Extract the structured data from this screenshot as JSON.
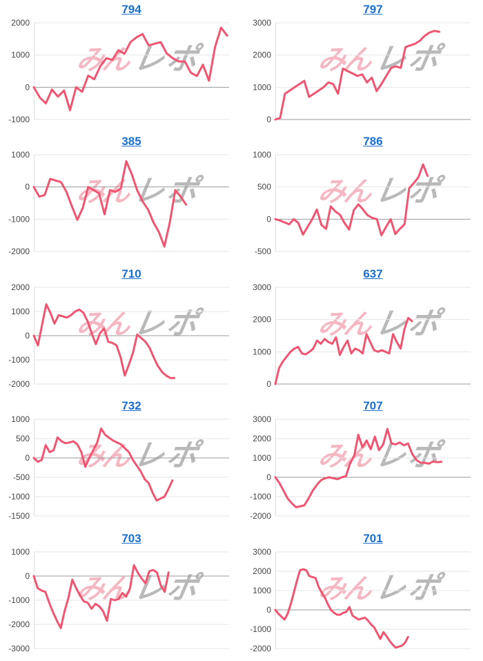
{
  "page": {
    "background": "#ffffff"
  },
  "watermark": {
    "pink_text": "みん",
    "gray_text": "レポ"
  },
  "style": {
    "line_color": "#ef5570",
    "grid_color": "#e6e6e6",
    "zero_line_color": "#999999",
    "axis_line_color": "#dddddd",
    "tick_label_color": "#444444",
    "title_link_color": "#1a6fce",
    "watermark_pink_color": "rgba(233, 98, 122, 0.45)",
    "watermark_gray_color": "rgba(128, 128, 128, 0.55)"
  },
  "chart_data": [
    {
      "type": "line",
      "title": "794",
      "ylim": [
        -1000,
        2000
      ],
      "yticks": [
        2000,
        1000,
        0,
        -1000
      ],
      "x_fraction": 0.99,
      "grid": true,
      "legend": "none",
      "values": [
        0,
        -320,
        -500,
        -70,
        -290,
        -100,
        -710,
        0,
        -140,
        360,
        250,
        650,
        900,
        850,
        1150,
        1040,
        1400,
        1550,
        1650,
        1300,
        1350,
        1400,
        1050,
        900,
        800,
        800,
        450,
        350,
        700,
        200,
        1250,
        1850,
        1600
      ]
    },
    {
      "type": "line",
      "title": "797",
      "ylim": [
        0,
        3000
      ],
      "yticks": [
        3000,
        2000,
        1000,
        0
      ],
      "x_fraction": 0.84,
      "grid": true,
      "legend": "none",
      "values": [
        0,
        50,
        800,
        900,
        1000,
        1100,
        1200,
        700,
        800,
        900,
        1000,
        1150,
        1100,
        800,
        1580,
        1500,
        1430,
        1350,
        1400,
        1150,
        1300,
        880,
        1100,
        1350,
        1600,
        1650,
        1600,
        2250,
        2300,
        2350,
        2450,
        2600,
        2700,
        2750,
        2720
      ]
    },
    {
      "type": "line",
      "title": "385",
      "ylim": [
        -2000,
        1000
      ],
      "yticks": [
        1000,
        0,
        -1000,
        -2000
      ],
      "x_fraction": 0.78,
      "grid": true,
      "legend": "none",
      "values": [
        0,
        -300,
        -250,
        250,
        200,
        150,
        -150,
        -600,
        -1020,
        -650,
        0,
        -100,
        -200,
        -850,
        -100,
        -150,
        -50,
        800,
        400,
        -100,
        -450,
        -700,
        -1100,
        -1400,
        -1850,
        -1100,
        -100,
        -300,
        -550
      ]
    },
    {
      "type": "line",
      "title": "786",
      "ylim": [
        -500,
        1000
      ],
      "yticks": [
        1000,
        500,
        0,
        -500
      ],
      "x_fraction": 0.78,
      "grid": true,
      "legend": "none",
      "values": [
        0,
        -20,
        -50,
        -80,
        0,
        -60,
        -240,
        -120,
        0,
        150,
        -90,
        -150,
        200,
        120,
        70,
        -60,
        -160,
        140,
        230,
        150,
        60,
        20,
        0,
        -250,
        -120,
        0,
        -230,
        -150,
        -80,
        480,
        560,
        650,
        850,
        670
      ]
    },
    {
      "type": "line",
      "title": "710",
      "ylim": [
        -2000,
        2000
      ],
      "yticks": [
        2000,
        1000,
        0,
        -1000,
        -2000
      ],
      "x_fraction": 0.72,
      "grid": true,
      "legend": "none",
      "values": [
        0,
        -400,
        450,
        1300,
        950,
        500,
        850,
        800,
        750,
        850,
        1000,
        1080,
        950,
        600,
        100,
        -350,
        100,
        300,
        -250,
        -300,
        -400,
        -900,
        -1650,
        -1200,
        -700,
        50,
        -100,
        -250,
        -500,
        -900,
        -1250,
        -1500,
        -1650,
        -1750,
        -1750
      ]
    },
    {
      "type": "line",
      "title": "637",
      "ylim": [
        0,
        3000
      ],
      "yticks": [
        3000,
        2000,
        1000,
        0
      ],
      "x_fraction": 0.7,
      "grid": true,
      "legend": "none",
      "values": [
        0,
        500,
        700,
        850,
        1000,
        1100,
        1150,
        950,
        920,
        1000,
        1100,
        1350,
        1250,
        1400,
        1300,
        1250,
        1450,
        900,
        1150,
        1350,
        950,
        1100,
        1050,
        950,
        1550,
        1300,
        1050,
        1000,
        1050,
        1000,
        950,
        1550,
        1300,
        1100,
        1700,
        2050,
        1950
      ]
    },
    {
      "type": "line",
      "title": "732",
      "ylim": [
        -1500,
        1000
      ],
      "yticks": [
        1000,
        500,
        0,
        -500,
        -1000,
        -1500
      ],
      "x_fraction": 0.71,
      "grid": true,
      "legend": "none",
      "values": [
        0,
        -100,
        -50,
        330,
        150,
        200,
        530,
        430,
        380,
        400,
        430,
        350,
        150,
        -230,
        0,
        200,
        400,
        760,
        600,
        520,
        450,
        400,
        350,
        250,
        150,
        -50,
        -200,
        -350,
        -550,
        -650,
        -900,
        -1100,
        -1050,
        -1000,
        -800,
        -580
      ]
    },
    {
      "type": "line",
      "title": "707",
      "ylim": [
        -2000,
        3000
      ],
      "yticks": [
        3000,
        2000,
        1000,
        0,
        -1000,
        -2000
      ],
      "x_fraction": 0.85,
      "grid": true,
      "legend": "none",
      "values": [
        0,
        -300,
        -700,
        -1100,
        -1350,
        -1550,
        -1500,
        -1450,
        -1100,
        -700,
        -400,
        -150,
        -50,
        0,
        -50,
        -100,
        0,
        50,
        700,
        1100,
        2200,
        1550,
        1900,
        1450,
        2100,
        1400,
        1700,
        2500,
        1750,
        1700,
        1800,
        1650,
        1750,
        1200,
        900,
        750,
        750,
        700,
        820,
        780,
        800
      ]
    },
    {
      "type": "line",
      "title": "703",
      "ylim": [
        -3000,
        1000
      ],
      "yticks": [
        1000,
        0,
        -1000,
        -2000,
        -3000
      ],
      "x_fraction": 0.69,
      "grid": true,
      "legend": "none",
      "values": [
        0,
        -500,
        -600,
        -650,
        -1100,
        -1500,
        -1850,
        -2150,
        -1450,
        -900,
        -150,
        -500,
        -800,
        -1050,
        -1100,
        -1350,
        -1150,
        -1250,
        -1450,
        -1850,
        -950,
        -1000,
        -950,
        -700,
        -850,
        -500,
        450,
        150,
        -100,
        -300,
        200,
        250,
        150,
        -400,
        -650,
        150
      ]
    },
    {
      "type": "line",
      "title": "701",
      "ylim": [
        -2000,
        3000
      ],
      "yticks": [
        3000,
        2000,
        1000,
        0,
        -1000,
        -2000
      ],
      "x_fraction": 0.68,
      "grid": true,
      "legend": "none",
      "values": [
        0,
        -200,
        -350,
        -500,
        -200,
        300,
        900,
        1500,
        2050,
        2100,
        2050,
        1750,
        1700,
        1650,
        1200,
        900,
        650,
        300,
        0,
        -150,
        -250,
        -250,
        -150,
        -100,
        150,
        -300,
        -400,
        -500,
        -450,
        -400,
        -550,
        -750,
        -900,
        -1200,
        -1500,
        -1150,
        -1350,
        -1600,
        -1800,
        -1950,
        -1900,
        -1850,
        -1700,
        -1400
      ]
    }
  ]
}
